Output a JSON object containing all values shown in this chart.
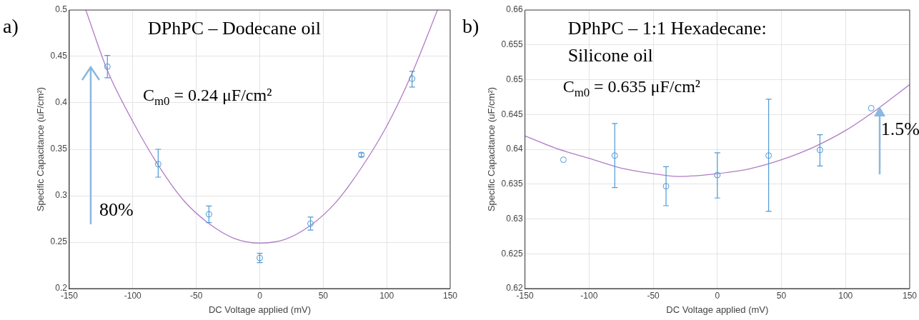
{
  "chart_data": [
    {
      "type": "scatter",
      "title": "DPhPC – Dodecane oil",
      "xlabel": "DC Voltage applied (mV)",
      "ylabel": "Specific Capacitance (uF/cm²)",
      "annotations": [
        "a)",
        "C$_{m0}$ = 0.24 μF/cm²",
        "80%"
      ],
      "series": [
        {
          "color": "#4f9ad6",
          "marker": "circle",
          "x": [
            -120,
            -80,
            -40,
            0,
            40,
            80,
            120
          ],
          "values": [
            0.439,
            0.334,
            0.28,
            0.233,
            0.27,
            0.344,
            0.426
          ],
          "errors": [
            [
              0.427,
              0.451
            ],
            [
              0.32,
              0.35
            ],
            [
              0.271,
              0.289
            ],
            [
              0.228,
              0.238
            ],
            [
              0.263,
              0.277
            ],
            [
              0.342,
              0.346
            ],
            [
              0.417,
              0.434
            ]
          ]
        },
        {
          "type": "line",
          "color": "#b07cc6",
          "marker": "none",
          "x": [
            -137,
            -120,
            -100,
            -80,
            -60,
            -40,
            -20,
            0,
            20,
            40,
            60,
            80,
            100,
            120,
            140
          ],
          "values": [
            0.5,
            0.435,
            0.38,
            0.333,
            0.295,
            0.27,
            0.254,
            0.249,
            0.253,
            0.268,
            0.293,
            0.33,
            0.375,
            0.432,
            0.5
          ]
        }
      ],
      "xlim": [
        -150,
        150
      ],
      "xticks": [
        -150,
        -100,
        -50,
        0,
        50,
        100,
        150
      ],
      "ylim": [
        0.2,
        0.5
      ],
      "yticks": [
        0.2,
        0.25,
        0.3,
        0.35,
        0.4,
        0.45,
        0.5
      ],
      "grid": true,
      "legend": false
    },
    {
      "type": "scatter",
      "title": "DPhPC – 1:1 Hexadecane: Silicone oil",
      "xlabel": "DC Voltage applied (mV)",
      "ylabel": "Specific Capacitance (uF/cm²)",
      "annotations": [
        "b)",
        "C$_{m0}$ = 0.635 μF/cm²",
        "1.5%"
      ],
      "series": [
        {
          "color": "#4f9ad6",
          "marker": "circle",
          "x": [
            -120,
            -80,
            -40,
            0,
            40,
            80,
            120
          ],
          "values": [
            0.6385,
            0.6391,
            0.6347,
            0.6363,
            0.6391,
            0.6399,
            0.6459
          ],
          "errors": [
            null,
            [
              0.6345,
              0.6437
            ],
            [
              0.6319,
              0.6375
            ],
            [
              0.633,
              0.6395
            ],
            [
              0.6311,
              0.6472
            ],
            [
              0.6376,
              0.6421
            ],
            null
          ]
        },
        {
          "type": "line",
          "color": "#b07cc6",
          "marker": "none",
          "x": [
            -150,
            -125,
            -100,
            -75,
            -50,
            -30,
            0,
            25,
            50,
            75,
            100,
            125,
            150
          ],
          "values": [
            0.6419,
            0.6401,
            0.6387,
            0.6373,
            0.6365,
            0.6361,
            0.6365,
            0.6372,
            0.6385,
            0.6403,
            0.6427,
            0.6458,
            0.6493
          ]
        }
      ],
      "xlim": [
        -150,
        150
      ],
      "xticks": [
        -150,
        -100,
        -50,
        0,
        50,
        100,
        150
      ],
      "ylim": [
        0.62,
        0.66
      ],
      "yticks": [
        0.62,
        0.625,
        0.63,
        0.635,
        0.64,
        0.645,
        0.65,
        0.655,
        0.66
      ],
      "grid": true,
      "legend": false
    }
  ]
}
